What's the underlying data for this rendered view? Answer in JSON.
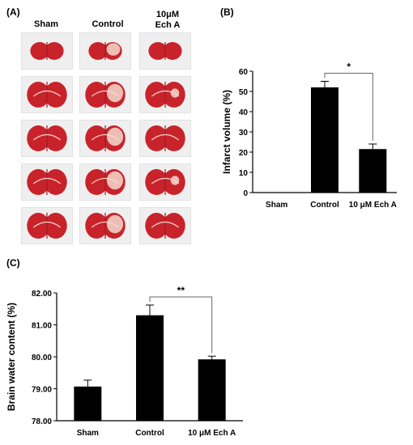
{
  "panel_a": {
    "label": "(A)",
    "columns": [
      {
        "line1": "Sham",
        "line2": ""
      },
      {
        "line1": "Control",
        "line2": ""
      },
      {
        "line1": "10μM",
        "line2": "Ech A"
      }
    ],
    "rows": 5,
    "colors": {
      "tissue": "#c8232b",
      "tissue_dark": "#9e1a20",
      "infarct": "#f3d9cf",
      "tile_bg": "#efefef"
    }
  },
  "chart_data": [
    {
      "panel_label": "(B)",
      "type": "bar",
      "categories": [
        "Sham",
        "Control",
        "10 μM Ech A"
      ],
      "values": [
        0,
        52,
        21.5
      ],
      "errors": [
        0,
        3,
        2.5
      ],
      "ylabel": "Infarct volume (%)",
      "xlabel": "",
      "ylim": [
        0,
        60
      ],
      "yticks": [
        "0",
        "10",
        "20",
        "30",
        "40",
        "50",
        "60"
      ],
      "significance": {
        "between": [
          1,
          2
        ],
        "label": "*"
      },
      "bar_color": "#000000"
    },
    {
      "panel_label": "(C)",
      "type": "bar",
      "categories": [
        "Sham",
        "Control",
        "10 μM Ech A"
      ],
      "values": [
        79.07,
        81.3,
        79.92
      ],
      "errors": [
        0.2,
        0.32,
        0.1
      ],
      "ylabel": "Brain water content (%)",
      "xlabel": "",
      "ylim": [
        78.0,
        82.0
      ],
      "yticks": [
        "78.00",
        "79.00",
        "80.00",
        "81.00",
        "82.00"
      ],
      "significance": {
        "between": [
          1,
          2
        ],
        "label": "**"
      },
      "bar_color": "#000000"
    }
  ]
}
